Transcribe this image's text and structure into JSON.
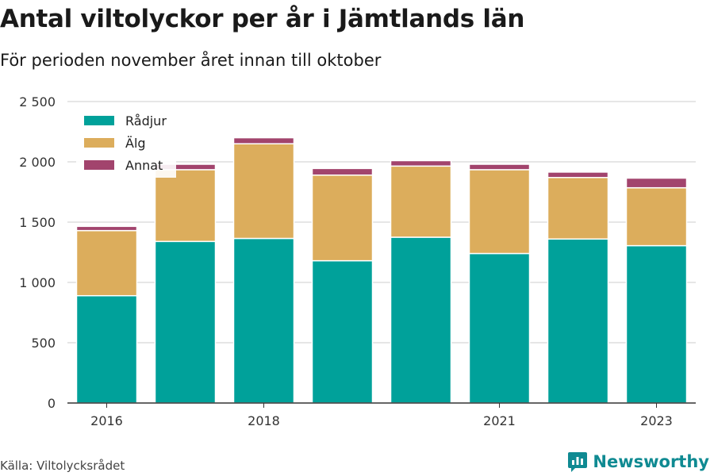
{
  "header": {
    "title": "Antal viltolyckor per år i Jämtlands län",
    "subtitle": "För perioden november året innan till oktober"
  },
  "footer": {
    "source": "Källa: Viltolycksrådet",
    "brand": "Newsworthy",
    "brand_icon": "newsworthy-logo-icon",
    "brand_color": "#0f8a92"
  },
  "chart_data": {
    "type": "bar",
    "stacked": true,
    "categories": [
      "2016",
      "2017",
      "2018",
      "2019",
      "2020",
      "2021",
      "2022",
      "2023"
    ],
    "x_tick_labels": [
      "2016",
      "",
      "2018",
      "",
      "",
      "2021",
      "",
      "2023"
    ],
    "series": [
      {
        "name": "Rådjur",
        "color": "#00a19a",
        "values": [
          890,
          1340,
          1365,
          1180,
          1375,
          1240,
          1360,
          1305
        ]
      },
      {
        "name": "Älg",
        "color": "#dcad5c",
        "values": [
          540,
          595,
          785,
          710,
          590,
          695,
          510,
          480
        ]
      },
      {
        "name": "Annat",
        "color": "#a2446d",
        "values": [
          35,
          45,
          50,
          55,
          45,
          45,
          45,
          80
        ]
      }
    ],
    "y_ticks": [
      0,
      500,
      1000,
      1500,
      2000,
      2500
    ],
    "y_tick_labels": [
      "0",
      "500",
      "1 000",
      "1 500",
      "2 000",
      "2 500"
    ],
    "ylim": [
      0,
      2500
    ],
    "grid": true,
    "legend_position": "top-left"
  }
}
